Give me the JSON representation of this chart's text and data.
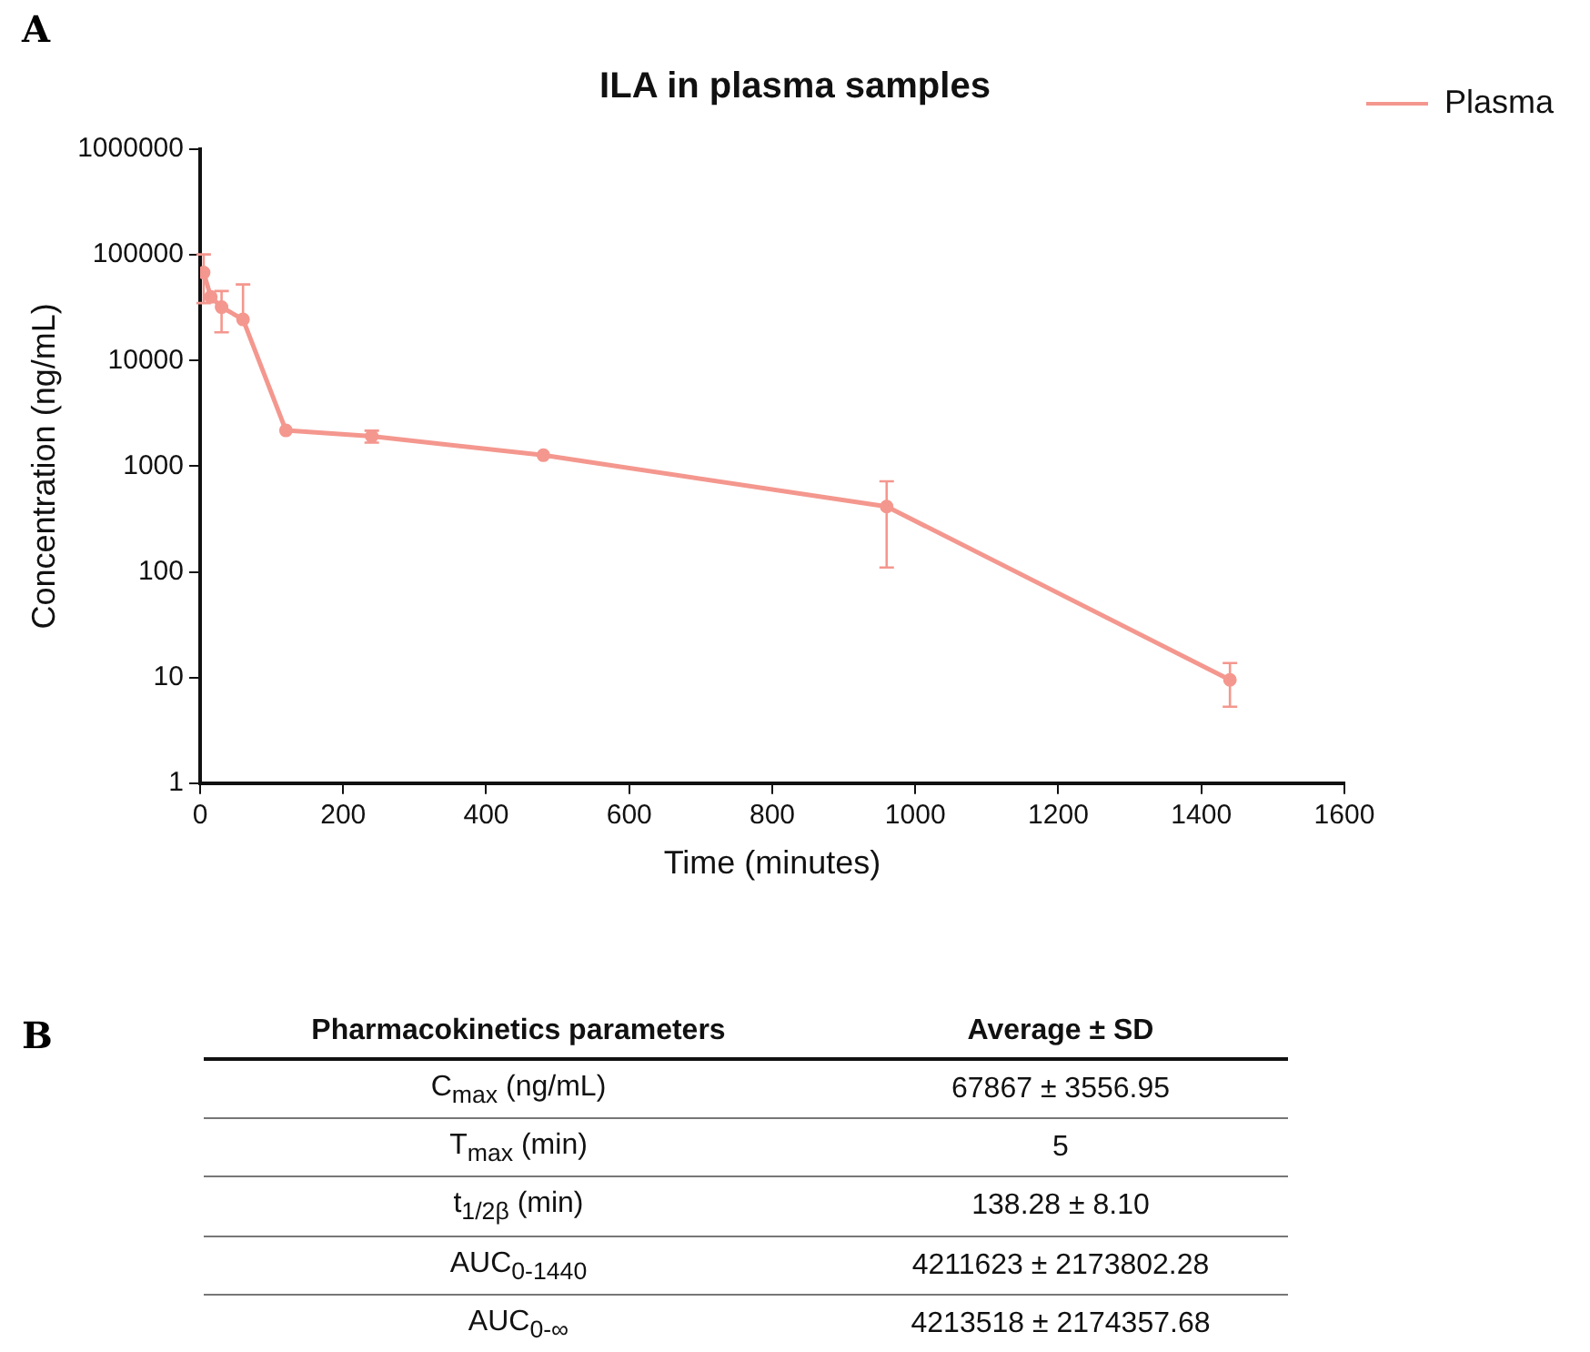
{
  "chart_data": [
    {
      "type": "line",
      "title": "ILA in plasma samples",
      "xlabel": "Time (minutes)",
      "ylabel": "Concentration (ng/mL)",
      "x": [
        5,
        15,
        30,
        60,
        120,
        240,
        480,
        960,
        1440
      ],
      "series": [
        {
          "name": "Plasma",
          "color": "#f4978e",
          "values": [
            68000,
            40000,
            32000,
            24500,
            2180,
            1920,
            1270,
            415,
            9.5
          ],
          "errors": [
            33000,
            null,
            13500,
            28000,
            null,
            250,
            null,
            305,
            4.2
          ]
        }
      ],
      "xlim": [
        0,
        1600
      ],
      "xticks": [
        0,
        200,
        400,
        600,
        800,
        1000,
        1200,
        1400,
        1600
      ],
      "ylim": [
        1,
        1000000
      ],
      "yticks": [
        1,
        10,
        100,
        1000,
        10000,
        100000,
        1000000
      ],
      "log": "y",
      "grid": false,
      "legend": "top right",
      "marker": "circle",
      "line_style": "solid",
      "annotations": [
        "A"
      ]
    },
    {
      "type": "other",
      "annotations": [
        "B",
        "Pharmacokinetics parameters",
        "Average ± SD",
        "C$_{max}$ (ng/mL)",
        "67867 ± 3556.95",
        "T$_{max}$ (min)",
        "5",
        "t$_{1/2β}$ (min)",
        "138.28 ± 8.10",
        "AUC$_{0-1440}$",
        "4211623 ± 2173802.28",
        "AUC$_{0-∞}$",
        "4213518 ± 2174357.68"
      ]
    }
  ]
}
